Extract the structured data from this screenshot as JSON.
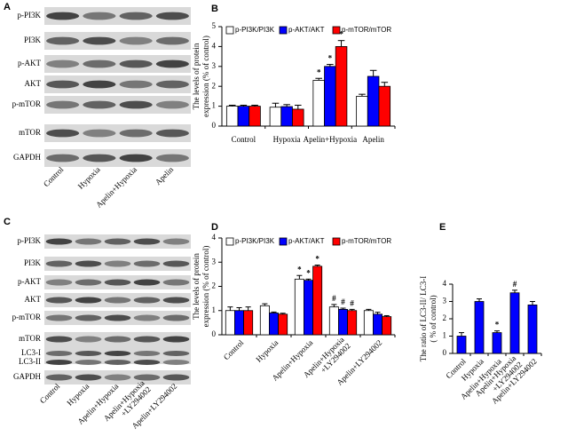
{
  "blots": [
    {
      "letter": "A",
      "rows": [
        "p-PI3K",
        "PI3K",
        "p-AKT",
        "AKT",
        "p-mTOR",
        "mTOR",
        "GAPDH"
      ],
      "lanes": [
        "Control",
        "Hypoxia",
        "Apelin+Hypoxia",
        "Apelin"
      ]
    },
    {
      "letter": "C",
      "rows": [
        "p-PI3K",
        "PI3K",
        "p-AKT",
        "AKT",
        "p-mTOR",
        "mTOR",
        "LC3-I",
        "LC3-II",
        "GAPDH"
      ],
      "lanes": [
        "Control",
        "Hypoxia",
        "Apelin+Hypoxia",
        [
          "Apelin+Hypoxia",
          "+LY294002"
        ],
        "Apelin+LY294002"
      ]
    }
  ],
  "chart_data": [
    {
      "type": "bar",
      "panel": "B",
      "ylabel": [
        "The levels of protein",
        "expression (% of control)"
      ],
      "categories": [
        "Control",
        "Hypoxia",
        "Apelin+Hypoxia",
        "Apelin"
      ],
      "series": [
        {
          "name": "p-PI3K/PI3K",
          "color": "#ffffff",
          "values": [
            1.0,
            0.95,
            2.3,
            1.5
          ],
          "errors": [
            0.05,
            0.2,
            0.1,
            0.1
          ],
          "markers": [
            null,
            null,
            "*",
            null
          ]
        },
        {
          "name": "p-AKT/AKT",
          "color": "#0000ff",
          "values": [
            1.0,
            0.98,
            3.0,
            2.5
          ],
          "errors": [
            0.05,
            0.1,
            0.1,
            0.3
          ],
          "markers": [
            null,
            null,
            "*",
            null
          ]
        },
        {
          "name": "p-mTOR/mTOR",
          "color": "#ff0000",
          "values": [
            1.0,
            0.85,
            4.0,
            2.0
          ],
          "errors": [
            0.05,
            0.2,
            0.3,
            0.2
          ],
          "markers": [
            null,
            null,
            "*",
            null
          ]
        }
      ],
      "ylim": [
        0,
        5
      ],
      "yticks": [
        0,
        1,
        2,
        3,
        4,
        5
      ]
    },
    {
      "type": "bar",
      "panel": "D",
      "ylabel": [
        "The levels of protein",
        "expression (% of control)"
      ],
      "categories": [
        "Control",
        "Hypoxia",
        "Apelin+Hypoxia",
        [
          "Apelin+Hypoxia",
          "+LY294002"
        ],
        "Apelin+LY294002"
      ],
      "series": [
        {
          "name": "p-PI3K/PI3K",
          "color": "#ffffff",
          "values": [
            1.0,
            1.2,
            2.3,
            1.15,
            1.0
          ],
          "errors": [
            0.15,
            0.08,
            0.15,
            0.1,
            0.05
          ],
          "markers": [
            null,
            null,
            "*",
            "#",
            null
          ]
        },
        {
          "name": "p-AKT/AKT",
          "color": "#0000ff",
          "values": [
            1.0,
            0.9,
            2.25,
            1.05,
            0.85
          ],
          "errors": [
            0.12,
            0.04,
            0.05,
            0.05,
            0.08
          ],
          "markers": [
            null,
            null,
            "*",
            "#",
            null
          ]
        },
        {
          "name": "p-mTOR/mTOR",
          "color": "#ff0000",
          "values": [
            1.0,
            0.85,
            2.83,
            1.0,
            0.75
          ],
          "errors": [
            0.15,
            0.04,
            0.05,
            0.05,
            0.04
          ],
          "markers": [
            null,
            null,
            "*",
            "#",
            null
          ]
        }
      ],
      "ylim": [
        0,
        4
      ],
      "yticks": [
        0,
        1,
        2,
        3,
        4
      ]
    },
    {
      "type": "bar",
      "panel": "E",
      "ylabel": [
        "The ratio of LC3-II/ LC3-I",
        "( % of control)"
      ],
      "categories": [
        "Control",
        "Hypoxia",
        "Apelin+Hypoxia",
        [
          "Apelin+Hypoxia",
          "+LY294002"
        ],
        "Apelin+LY294002"
      ],
      "series": [
        {
          "color": "#0000ff",
          "values": [
            1.0,
            3.0,
            1.2,
            3.5,
            2.8
          ],
          "errors": [
            0.2,
            0.15,
            0.1,
            0.15,
            0.2
          ],
          "markers": [
            null,
            null,
            "*",
            "#",
            null
          ]
        }
      ],
      "ylim": [
        0,
        4
      ],
      "yticks": [
        0,
        1,
        2,
        3,
        4
      ]
    }
  ]
}
